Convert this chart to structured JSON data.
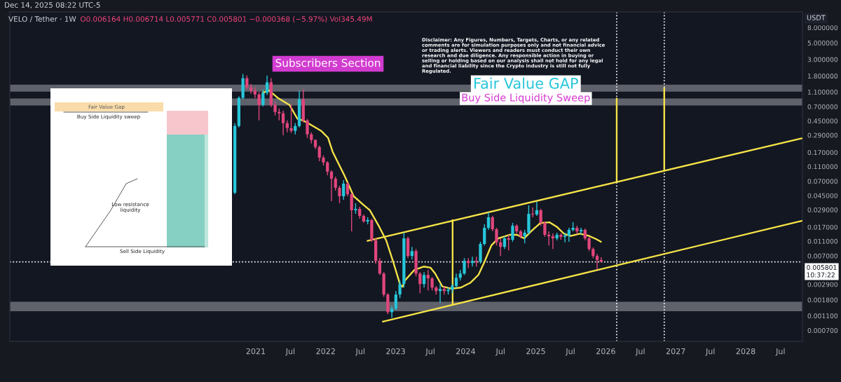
{
  "chart_data": {
    "type": "candlestick",
    "subtitle": "VELO / Tether · 1W",
    "ylabel": "USDT",
    "annotations": [
      "Dec 14, 2025 08:22 UTC-5",
      "O0.006164 H0.006714 L0.005771 C0.005801 −0.000368 (−5.97%) Vol345.49M",
      "Subscribers Section",
      "Disclaimer: Any Figures, Numbers, Targets, Charts, or any related comments are for simulation purposes only and not financial advice or trading alerts. Viewers and readers must conduct their own research and due diligence. Any responsible action in buying or selling or holding based on our analysis shall not hold for any legal and financial liability since the Crypto industry is still not fully Regulated.",
      "Fair Value Gap",
      "Buy Side Liquidity sweep",
      "Low resistance liquidity",
      "Sell Side Liquidity"
    ],
    "log": true,
    "xlim": [
      "2017-06-28",
      "2028-10-23"
    ],
    "xticks": [
      {
        "value": "2021-01-01",
        "label": "2021"
      },
      {
        "value": "2021-07-01",
        "label": "Jul"
      },
      {
        "value": "2022-01-01",
        "label": "2022"
      },
      {
        "value": "2022-07-01",
        "label": "Jul"
      },
      {
        "value": "2023-01-01",
        "label": "2023"
      },
      {
        "value": "2023-07-01",
        "label": "Jul"
      },
      {
        "value": "2024-01-01",
        "label": "2024"
      },
      {
        "value": "2024-07-01",
        "label": "Jul"
      },
      {
        "value": "2025-01-01",
        "label": "2025"
      },
      {
        "value": "2025-07-01",
        "label": "Jul"
      },
      {
        "value": "2026-01-01",
        "label": "2026"
      },
      {
        "value": "2026-07-01",
        "label": "Jul"
      },
      {
        "value": "2027-01-01",
        "label": "2027"
      },
      {
        "value": "2027-07-01",
        "label": "Jul"
      },
      {
        "value": "2028-01-01",
        "label": "2028"
      },
      {
        "value": "2028-07-01",
        "label": "Jul"
      }
    ],
    "ylim": [
      0.0005,
      13
    ],
    "yticks": [
      {
        "value": 8,
        "label": "8.000000"
      },
      {
        "value": 5,
        "label": "5.000000"
      },
      {
        "value": 3,
        "label": "3.000000"
      },
      {
        "value": 1.8,
        "label": "1.800000"
      },
      {
        "value": 1.1,
        "label": "1.100000"
      },
      {
        "value": 0.7,
        "label": "0.700000"
      },
      {
        "value": 0.45,
        "label": "0.450000"
      },
      {
        "value": 0.29,
        "label": "0.290000"
      },
      {
        "value": 0.17,
        "label": "0.170000"
      },
      {
        "value": 0.11,
        "label": "0.110000"
      },
      {
        "value": 0.07,
        "label": "0.070000"
      },
      {
        "value": 0.045,
        "label": "0.045000"
      },
      {
        "value": 0.029,
        "label": "0.029000"
      },
      {
        "value": 0.017,
        "label": "0.017000"
      },
      {
        "value": 0.011,
        "label": "0.011000"
      },
      {
        "value": 0.007,
        "label": "0.007000"
      },
      {
        "value": 0.0029,
        "label": "0.002900"
      },
      {
        "value": 0.0018,
        "label": "0.001800"
      },
      {
        "value": 0.0011,
        "label": "0.001100"
      },
      {
        "value": 0.0007,
        "label": "0.000700"
      }
    ],
    "bands": [
      {
        "axis": "y",
        "from": 1.11,
        "to": 1.38,
        "label": "Fair Value GAP",
        "color": "#5f626b"
      },
      {
        "axis": "y",
        "from": 0.724,
        "to": 0.9,
        "label": "Buy Side Liquidity Sweep",
        "color": "#5f626b"
      },
      {
        "axis": "y",
        "from": 0.00127,
        "to": 0.0017,
        "color": "#5f626b"
      }
    ],
    "ref_lines": [
      {
        "axis": "y",
        "value": 0.005801,
        "label": "0.005801\n10:37:22",
        "color": "#ffffff",
        "line_style": "dotted"
      },
      {
        "axis": "x",
        "value": "2026-02-27",
        "color": "#ffffff",
        "line_style": "dotted"
      },
      {
        "axis": "x",
        "value": "2026-11-02",
        "color": "#ffffff",
        "line_style": "dotted"
      }
    ],
    "series": [
      {
        "type": "candlestick",
        "x": [
          "2020-09-14",
          "2020-10-05",
          "2020-10-26",
          "2020-11-16",
          "2020-12-07",
          "2020-12-28",
          "2021-01-18",
          "2021-02-08",
          "2021-03-01",
          "2021-03-22",
          "2021-04-12",
          "2021-05-03",
          "2021-05-24",
          "2021-06-14",
          "2021-07-05",
          "2021-07-26",
          "2021-08-16",
          "2021-09-06",
          "2021-09-27",
          "2021-10-18",
          "2021-11-08",
          "2021-11-29",
          "2021-12-20",
          "2022-01-10",
          "2022-01-31",
          "2022-02-21",
          "2022-03-14",
          "2022-04-04",
          "2022-04-25",
          "2022-05-16",
          "2022-06-06",
          "2022-06-27",
          "2022-07-18",
          "2022-08-08",
          "2022-08-29",
          "2022-09-19",
          "2022-10-10",
          "2022-10-31",
          "2022-11-21",
          "2022-12-12",
          "2023-01-02",
          "2023-01-23",
          "2023-02-13",
          "2023-03-06",
          "2023-03-27",
          "2023-04-17",
          "2023-05-08",
          "2023-05-29",
          "2023-06-19",
          "2023-07-10",
          "2023-07-31",
          "2023-08-21",
          "2023-09-11",
          "2023-10-02",
          "2023-10-23",
          "2023-11-13",
          "2023-12-04",
          "2023-12-25",
          "2024-01-15",
          "2024-02-05",
          "2024-02-26",
          "2024-03-18",
          "2024-04-08",
          "2024-04-29",
          "2024-05-20",
          "2024-06-10",
          "2024-07-01",
          "2024-07-22",
          "2024-08-12",
          "2024-09-02",
          "2024-09-23",
          "2024-10-14",
          "2024-11-04",
          "2024-11-25",
          "2024-12-16",
          "2025-01-06",
          "2025-01-27",
          "2025-02-17",
          "2025-03-10",
          "2025-03-31",
          "2025-04-21",
          "2025-05-12",
          "2025-06-02",
          "2025-06-23",
          "2025-07-14",
          "2025-08-04",
          "2025-08-25",
          "2025-09-15",
          "2025-10-06",
          "2025-10-27",
          "2025-11-17",
          "2025-12-08"
        ],
        "ohlc": [
          [
            0.0491,
            0.42,
            0.047,
            0.385
          ],
          [
            0.385,
            0.957,
            0.369,
            0.916
          ],
          [
            0.916,
            1.91,
            0.877,
            1.68
          ],
          [
            1.68,
            1.83,
            1.19,
            1.27
          ],
          [
            1.27,
            1.41,
            1.04,
            1.14
          ],
          [
            1.14,
            1.27,
            0.916,
            1.02
          ],
          [
            1.02,
            1.09,
            0.458,
            0.737
          ],
          [
            0.737,
            1.19,
            0.706,
            1.07
          ],
          [
            1.07,
            1.83,
            1.0,
            1.48
          ],
          [
            1.48,
            1.68,
            0.691,
            0.737
          ],
          [
            0.737,
            0.822,
            0.533,
            0.594
          ],
          [
            0.594,
            0.662,
            0.458,
            0.569
          ],
          [
            0.569,
            0.62,
            0.29,
            0.42
          ],
          [
            0.42,
            0.458,
            0.317,
            0.361
          ],
          [
            0.361,
            0.737,
            0.31,
            0.331
          ],
          [
            0.331,
            0.42,
            0.297,
            0.385
          ],
          [
            0.385,
            1.14,
            0.369,
            0.877
          ],
          [
            0.877,
            1.19,
            0.429,
            0.458
          ],
          [
            0.458,
            0.478,
            0.266,
            0.297
          ],
          [
            0.297,
            0.317,
            0.224,
            0.25
          ],
          [
            0.25,
            0.255,
            0.188,
            0.201
          ],
          [
            0.201,
            0.21,
            0.13,
            0.145
          ],
          [
            0.145,
            0.155,
            0.114,
            0.125
          ],
          [
            0.125,
            0.13,
            0.0843,
            0.094
          ],
          [
            0.094,
            0.0982,
            0.0378,
            0.0757
          ],
          [
            0.0757,
            0.0807,
            0.0524,
            0.0571
          ],
          [
            0.0571,
            0.0609,
            0.0355,
            0.044
          ],
          [
            0.044,
            0.0725,
            0.0395,
            0.065
          ],
          [
            0.065,
            0.0679,
            0.044,
            0.047
          ],
          [
            0.047,
            0.0491,
            0.0149,
            0.0286
          ],
          [
            0.0286,
            0.0355,
            0.0256,
            0.0298
          ],
          [
            0.0298,
            0.0318,
            0.022,
            0.024
          ],
          [
            0.024,
            0.0251,
            0.0194,
            0.0202
          ],
          [
            0.0202,
            0.023,
            0.0185,
            0.0211
          ],
          [
            0.0211,
            0.022,
            0.0108,
            0.0113
          ],
          [
            0.0113,
            0.012,
            0.00549,
            0.00599
          ],
          [
            0.00599,
            0.00653,
            0.00388,
            0.00405
          ],
          [
            0.00405,
            0.00424,
            0.00198,
            0.00212
          ],
          [
            0.00212,
            0.00221,
            0.00116,
            0.00123
          ],
          [
            0.00123,
            0.0015,
            0.00104,
            0.00137
          ],
          [
            0.00137,
            0.00236,
            0.00131,
            0.00212
          ],
          [
            0.00212,
            0.00326,
            0.0019,
            0.00293
          ],
          [
            0.00293,
            0.0143,
            0.00263,
            0.012
          ],
          [
            0.012,
            0.0126,
            0.00653,
            0.00697
          ],
          [
            0.00697,
            0.00923,
            0.00625,
            0.0081
          ],
          [
            0.0081,
            0.00865,
            0.00372,
            0.00405
          ],
          [
            0.00405,
            0.00424,
            0.00221,
            0.00293
          ],
          [
            0.00293,
            0.00424,
            0.00263,
            0.00388
          ],
          [
            0.00388,
            0.00452,
            0.00241,
            0.00349
          ],
          [
            0.00349,
            0.00364,
            0.00241,
            0.00263
          ],
          [
            0.00263,
            0.00275,
            0.00212,
            0.00236
          ],
          [
            0.00236,
            0.00293,
            0.00163,
            0.00252
          ],
          [
            0.00252,
            0.00275,
            0.00212,
            0.00236
          ],
          [
            0.00236,
            0.00263,
            0.00212,
            0.00246
          ],
          [
            0.00246,
            0.00293,
            0.00221,
            0.00275
          ],
          [
            0.00275,
            0.00405,
            0.00263,
            0.00356
          ],
          [
            0.00356,
            0.00452,
            0.00326,
            0.00405
          ],
          [
            0.00405,
            0.00653,
            0.00388,
            0.00599
          ],
          [
            0.00599,
            0.00653,
            0.00482,
            0.00561
          ],
          [
            0.00561,
            0.00682,
            0.00503,
            0.00599
          ],
          [
            0.00599,
            0.00682,
            0.00503,
            0.00586
          ],
          [
            0.00586,
            0.0108,
            0.00549,
            0.0101
          ],
          [
            0.0101,
            0.0185,
            0.00964,
            0.0166
          ],
          [
            0.0166,
            0.0268,
            0.0156,
            0.023
          ],
          [
            0.023,
            0.024,
            0.0149,
            0.0159
          ],
          [
            0.0159,
            0.0166,
            0.00964,
            0.0106
          ],
          [
            0.0106,
            0.012,
            0.00697,
            0.00923
          ],
          [
            0.00923,
            0.0128,
            0.00865,
            0.012
          ],
          [
            0.012,
            0.0134,
            0.00828,
            0.0115
          ],
          [
            0.0115,
            0.0194,
            0.0108,
            0.0177
          ],
          [
            0.0177,
            0.0185,
            0.014,
            0.0149
          ],
          [
            0.0149,
            0.0156,
            0.012,
            0.0128
          ],
          [
            0.0128,
            0.0156,
            0.0103,
            0.0143
          ],
          [
            0.0143,
            0.0332,
            0.0137,
            0.0256
          ],
          [
            0.0256,
            0.0311,
            0.023,
            0.0251
          ],
          [
            0.0251,
            0.037,
            0.024,
            0.0286
          ],
          [
            0.0286,
            0.0298,
            0.0177,
            0.0194
          ],
          [
            0.0194,
            0.0202,
            0.0126,
            0.0134
          ],
          [
            0.0134,
            0.0149,
            0.00964,
            0.0128
          ],
          [
            0.0128,
            0.014,
            0.00865,
            0.012
          ],
          [
            0.012,
            0.0143,
            0.0113,
            0.0134
          ],
          [
            0.0134,
            0.014,
            0.0115,
            0.0126
          ],
          [
            0.0126,
            0.0143,
            0.0106,
            0.0131
          ],
          [
            0.0131,
            0.0166,
            0.0108,
            0.0156
          ],
          [
            0.0156,
            0.0198,
            0.0149,
            0.0166
          ],
          [
            0.0166,
            0.0177,
            0.0137,
            0.0149
          ],
          [
            0.0149,
            0.0166,
            0.0137,
            0.0156
          ],
          [
            0.0156,
            0.0163,
            0.0113,
            0.012
          ],
          [
            0.012,
            0.0126,
            0.0081,
            0.00865
          ],
          [
            0.00865,
            0.00904,
            0.00653,
            0.00697
          ],
          [
            0.00697,
            0.00743,
            0.00461,
            0.006164
          ],
          [
            0.006164,
            0.006714,
            0.005771,
            0.005801
          ]
        ],
        "colors": [
          "#26c6da",
          "#26c6da",
          "#26c6da",
          "#e0467c",
          "#e0467c",
          "#e0467c",
          "#e0467c",
          "#26c6da",
          "#26c6da",
          "#e0467c",
          "#e0467c",
          "#e0467c",
          "#e0467c",
          "#e0467c",
          "#e0467c",
          "#26c6da",
          "#26c6da",
          "#e0467c",
          "#e0467c",
          "#e0467c",
          "#e0467c",
          "#e0467c",
          "#e0467c",
          "#e0467c",
          "#e0467c",
          "#e0467c",
          "#e0467c",
          "#26c6da",
          "#e0467c",
          "#e0467c",
          "#26c6da",
          "#e0467c",
          "#e0467c",
          "#26c6da",
          "#e0467c",
          "#e0467c",
          "#e0467c",
          "#e0467c",
          "#e0467c",
          "#26c6da",
          "#26c6da",
          "#26c6da",
          "#26c6da",
          "#e0467c",
          "#26c6da",
          "#e0467c",
          "#e0467c",
          "#26c6da",
          "#e0467c",
          "#e0467c",
          "#e0467c",
          "#26c6da",
          "#e0467c",
          "#26c6da",
          "#26c6da",
          "#26c6da",
          "#26c6da",
          "#26c6da",
          "#e0467c",
          "#26c6da",
          "#e0467c",
          "#26c6da",
          "#26c6da",
          "#26c6da",
          "#e0467c",
          "#e0467c",
          "#e0467c",
          "#26c6da",
          "#e0467c",
          "#26c6da",
          "#e0467c",
          "#e0467c",
          "#26c6da",
          "#26c6da",
          "#e0467c",
          "#26c6da",
          "#e0467c",
          "#e0467c",
          "#e0467c",
          "#e0467c",
          "#26c6da",
          "#e0467c",
          "#26c6da",
          "#26c6da",
          "#26c6da",
          "#e0467c",
          "#26c6da",
          "#e0467c",
          "#e0467c",
          "#e0467c",
          "#e0467c",
          "#e0467c"
        ]
      },
      {
        "type": "line",
        "color": "#f5e348",
        "x": [
          "2021-02-06",
          "2021-03-12",
          "2021-04-26",
          "2021-06-26",
          "2021-08-07",
          "2021-09-01",
          "2021-10-01",
          "2021-12-07",
          "2022-01-13",
          "2022-02-06",
          "2022-04-08",
          "2022-05-27",
          "2022-07-14",
          "2022-08-19",
          "2022-10-07",
          "2022-11-13",
          "2022-12-19",
          "2023-01-25",
          "2023-02-06",
          "2023-02-18",
          "2023-04-08",
          "2023-05-27",
          "2023-07-02",
          "2023-07-26",
          "2023-09-01",
          "2023-10-19",
          "2023-12-07",
          "2024-01-25",
          "2024-03-08",
          "2024-04-08",
          "2024-05-14",
          "2024-06-19",
          "2024-08-19",
          "2024-09-25",
          "2024-11-01",
          "2024-12-07",
          "2025-01-25",
          "2025-03-14",
          "2025-04-20",
          "2025-05-27",
          "2025-07-02",
          "2025-08-19",
          "2025-10-07",
          "2025-11-13",
          "2025-12-07"
        ],
        "values": [
          1.07,
          1.15,
          0.916,
          0.737,
          0.478,
          0.46,
          0.42,
          0.333,
          0.268,
          0.174,
          0.0843,
          0.044,
          0.0342,
          0.0286,
          0.0172,
          0.0112,
          0.0058,
          0.00283,
          0.0027,
          0.00326,
          0.00452,
          0.00503,
          0.00485,
          0.00405,
          0.00273,
          0.00254,
          0.00263,
          0.00304,
          0.0039,
          0.0058,
          0.00964,
          0.012,
          0.0134,
          0.0134,
          0.012,
          0.0149,
          0.0193,
          0.0197,
          0.0172,
          0.0139,
          0.0129,
          0.0139,
          0.0129,
          0.0117,
          0.0108
        ]
      },
      {
        "type": "line",
        "color": "#f5e348",
        "x": [
          "2022-08-07",
          "2028-10-19"
        ],
        "values": [
          0.0111,
          0.263
        ]
      },
      {
        "type": "line",
        "color": "#f5e348",
        "x": [
          "2022-10-26",
          "2028-10-19"
        ],
        "values": [
          0.00092,
          0.0206
        ]
      },
      {
        "type": "line",
        "color": "#f5e348",
        "x": [
          "2023-10-25",
          "2023-10-25"
        ],
        "values": [
          0.00155,
          0.0211
        ]
      },
      {
        "type": "line",
        "color": "#f5e348",
        "x": [
          "2026-02-27",
          "2026-02-27"
        ],
        "values": [
          0.0693,
          0.9
        ]
      },
      {
        "type": "line",
        "color": "#f5e348",
        "x": [
          "2026-11-02",
          "2026-11-02"
        ],
        "values": [
          0.0973,
          1.24
        ]
      }
    ]
  }
}
